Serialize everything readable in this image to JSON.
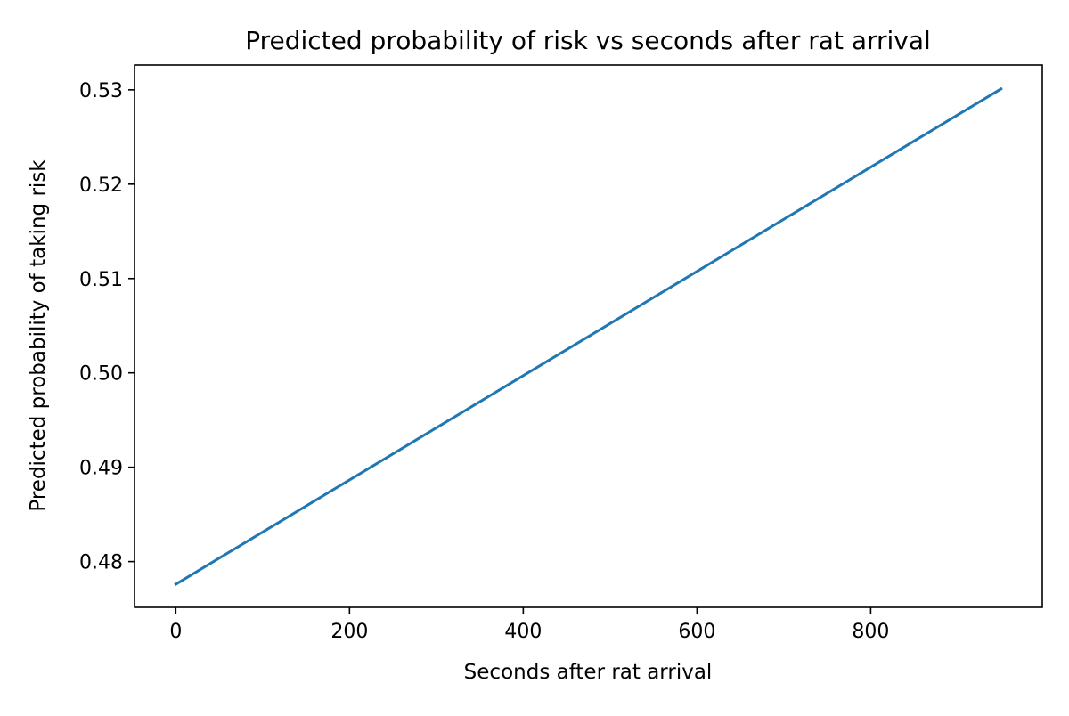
{
  "chart_data": {
    "type": "line",
    "title": "Predicted probability of risk vs seconds after rat arrival",
    "xlabel": "Seconds after rat arrival",
    "ylabel": "Predicted probability of taking risk",
    "xlim": [
      -47.5,
      997.5
    ],
    "ylim": [
      0.47515,
      0.53263
    ],
    "x_ticks": [
      0,
      200,
      400,
      600,
      800
    ],
    "x_tick_labels": [
      "0",
      "200",
      "400",
      "600",
      "800"
    ],
    "y_ticks": [
      0.48,
      0.49,
      0.5,
      0.51,
      0.52,
      0.53
    ],
    "y_tick_labels": [
      "0.48",
      "0.49",
      "0.50",
      "0.51",
      "0.52",
      "0.53"
    ],
    "grid": false,
    "legend": "none",
    "series": [
      {
        "color": "#1f77b4",
        "x": [
          0,
          950
        ],
        "y": [
          0.4776,
          0.5301
        ]
      }
    ]
  }
}
